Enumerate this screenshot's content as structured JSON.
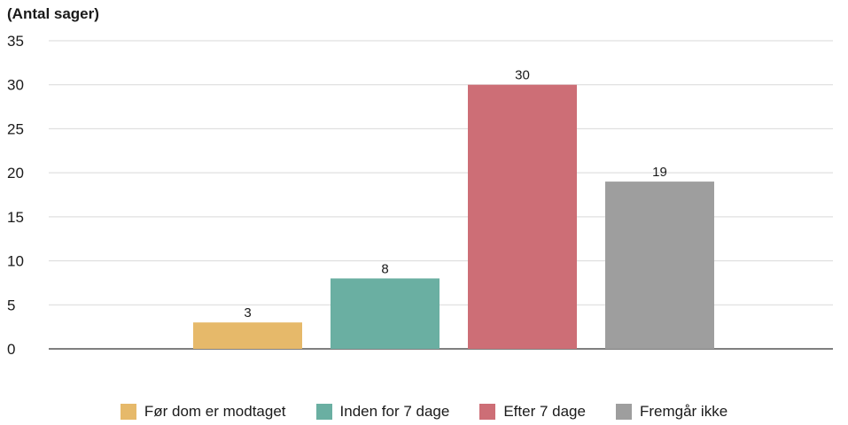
{
  "chart_data": {
    "type": "bar",
    "title": "(Antal sager)",
    "ylim": [
      0,
      35
    ],
    "yticks": [
      0,
      5,
      10,
      15,
      20,
      25,
      30,
      35
    ],
    "grid": true,
    "legend_position": "bottom",
    "series": [
      {
        "name": "Før dom er modtaget",
        "value": 3,
        "color": "#e6b96a"
      },
      {
        "name": "Inden for 7 dage",
        "value": 8,
        "color": "#6aafa2"
      },
      {
        "name": "Efter 7 dage",
        "value": 30,
        "color": "#cd6e76"
      },
      {
        "name": "Fremgår ikke",
        "value": 19,
        "color": "#9e9e9e"
      }
    ]
  }
}
